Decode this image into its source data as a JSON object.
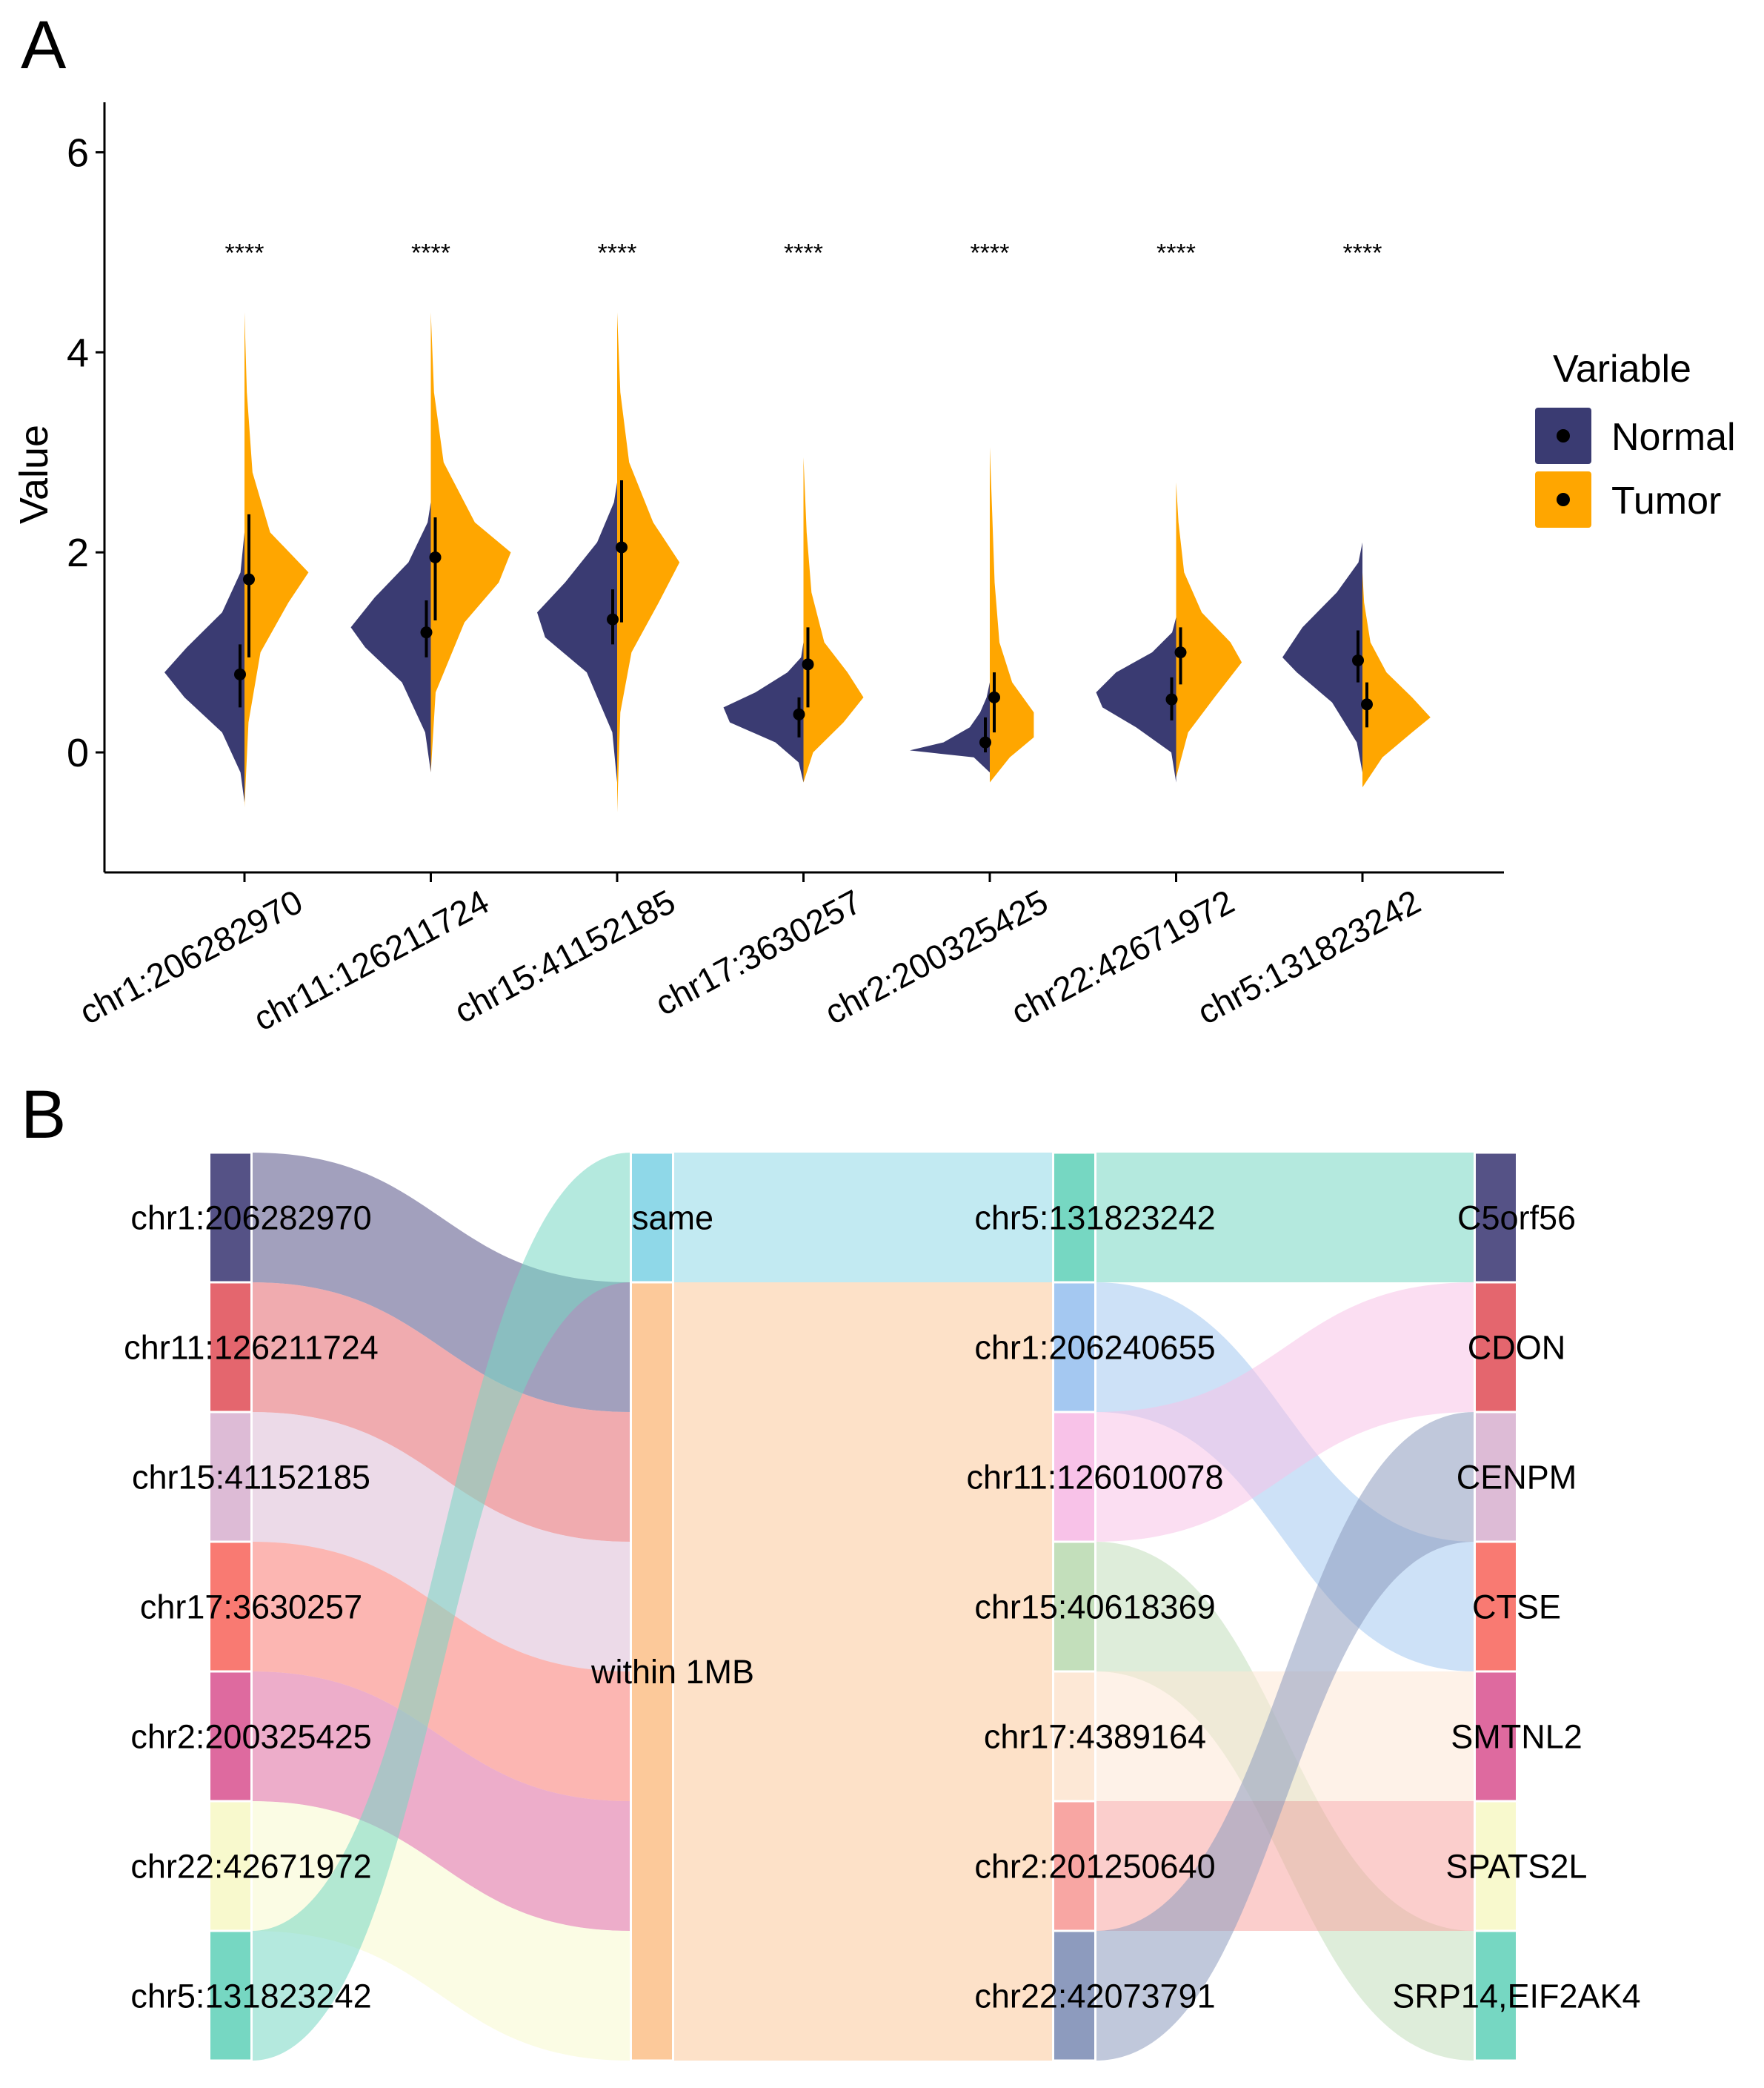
{
  "panels": {
    "a_label": "A",
    "b_label": "B"
  },
  "colors": {
    "normal": "#3a3b72",
    "tumor": "#ffa600"
  },
  "chart_data": [
    {
      "type": "split-violin",
      "title": "",
      "xlabel": "",
      "ylabel": "Value",
      "ylim": [
        -1.2,
        6.5
      ],
      "yticks": [
        0,
        2,
        4,
        6
      ],
      "legend": {
        "title": "Variable",
        "position": "right",
        "entries": [
          "Normal",
          "Tumor"
        ]
      },
      "categories": [
        "chr1:206282970",
        "chr11:126211724",
        "chr15:41152185",
        "chr17:3630257",
        "chr2:200325425",
        "chr22:42671972",
        "chr5:131823242"
      ],
      "significance": [
        "****",
        "****",
        "****",
        "****",
        "****",
        "****",
        "****"
      ],
      "series": [
        {
          "name": "Normal",
          "median": [
            0.78,
            1.2,
            1.33,
            0.38,
            0.1,
            0.53,
            0.92
          ],
          "lower": [
            0.45,
            0.95,
            1.08,
            0.15,
            0.0,
            0.32,
            0.7
          ],
          "upper": [
            1.08,
            1.52,
            1.63,
            0.55,
            0.35,
            0.75,
            1.22
          ],
          "density": [
            [
              [
                -0.5,
                0.0
              ],
              [
                -0.2,
                0.05
              ],
              [
                0.2,
                0.28
              ],
              [
                0.55,
                0.75
              ],
              [
                0.8,
                1.0
              ],
              [
                1.05,
                0.72
              ],
              [
                1.4,
                0.28
              ],
              [
                1.8,
                0.05
              ],
              [
                2.2,
                0.0
              ]
            ],
            [
              [
                -0.2,
                0.0
              ],
              [
                0.2,
                0.07
              ],
              [
                0.7,
                0.36
              ],
              [
                1.05,
                0.82
              ],
              [
                1.25,
                1.0
              ],
              [
                1.55,
                0.7
              ],
              [
                1.9,
                0.28
              ],
              [
                2.3,
                0.04
              ],
              [
                2.5,
                0.0
              ]
            ],
            [
              [
                -0.3,
                0.0
              ],
              [
                0.2,
                0.06
              ],
              [
                0.8,
                0.38
              ],
              [
                1.15,
                0.9
              ],
              [
                1.4,
                1.0
              ],
              [
                1.7,
                0.65
              ],
              [
                2.1,
                0.25
              ],
              [
                2.5,
                0.04
              ],
              [
                2.7,
                0.0
              ]
            ],
            [
              [
                -0.3,
                0.0
              ],
              [
                -0.1,
                0.06
              ],
              [
                0.1,
                0.35
              ],
              [
                0.3,
                0.92
              ],
              [
                0.45,
                1.0
              ],
              [
                0.6,
                0.6
              ],
              [
                0.8,
                0.2
              ],
              [
                0.95,
                0.03
              ],
              [
                1.1,
                0.0
              ]
            ],
            [
              [
                -0.2,
                0.0
              ],
              [
                -0.05,
                0.2
              ],
              [
                0.02,
                1.0
              ],
              [
                0.1,
                0.58
              ],
              [
                0.25,
                0.25
              ],
              [
                0.4,
                0.12
              ],
              [
                0.55,
                0.04
              ],
              [
                0.7,
                0.0
              ]
            ],
            [
              [
                -0.3,
                0.0
              ],
              [
                0.0,
                0.06
              ],
              [
                0.25,
                0.5
              ],
              [
                0.45,
                0.92
              ],
              [
                0.6,
                1.0
              ],
              [
                0.8,
                0.75
              ],
              [
                1.0,
                0.3
              ],
              [
                1.2,
                0.05
              ],
              [
                1.35,
                0.0
              ]
            ],
            [
              [
                -0.2,
                0.0
              ],
              [
                0.1,
                0.07
              ],
              [
                0.5,
                0.38
              ],
              [
                0.8,
                0.82
              ],
              [
                0.95,
                1.0
              ],
              [
                1.25,
                0.75
              ],
              [
                1.6,
                0.32
              ],
              [
                1.9,
                0.05
              ],
              [
                2.1,
                0.0
              ]
            ]
          ]
        },
        {
          "name": "Tumor",
          "median": [
            1.73,
            1.95,
            2.05,
            0.88,
            0.55,
            1.0,
            0.48
          ],
          "lower": [
            0.95,
            1.32,
            1.3,
            0.45,
            0.2,
            0.68,
            0.25
          ],
          "upper": [
            2.38,
            2.35,
            2.72,
            1.25,
            0.8,
            1.25,
            0.7
          ],
          "density": [
            [
              [
                -0.55,
                0.0
              ],
              [
                0.3,
                0.05
              ],
              [
                1.0,
                0.2
              ],
              [
                1.5,
                0.55
              ],
              [
                1.8,
                0.8
              ],
              [
                2.2,
                0.32
              ],
              [
                2.8,
                0.1
              ],
              [
                3.6,
                0.03
              ],
              [
                4.4,
                0.0
              ]
            ],
            [
              [
                -0.2,
                0.0
              ],
              [
                0.6,
                0.06
              ],
              [
                1.3,
                0.42
              ],
              [
                1.7,
                0.85
              ],
              [
                2.0,
                1.0
              ],
              [
                2.3,
                0.55
              ],
              [
                2.9,
                0.16
              ],
              [
                3.6,
                0.04
              ],
              [
                4.4,
                0.0
              ]
            ],
            [
              [
                -0.6,
                0.0
              ],
              [
                0.4,
                0.04
              ],
              [
                1.0,
                0.18
              ],
              [
                1.5,
                0.52
              ],
              [
                1.9,
                0.78
              ],
              [
                2.3,
                0.45
              ],
              [
                2.9,
                0.15
              ],
              [
                3.6,
                0.04
              ],
              [
                4.4,
                0.0
              ]
            ],
            [
              [
                -0.3,
                0.0
              ],
              [
                0.0,
                0.12
              ],
              [
                0.3,
                0.5
              ],
              [
                0.55,
                0.75
              ],
              [
                0.8,
                0.55
              ],
              [
                1.1,
                0.26
              ],
              [
                1.6,
                0.1
              ],
              [
                2.2,
                0.04
              ],
              [
                2.95,
                0.0
              ]
            ],
            [
              [
                -0.3,
                0.0
              ],
              [
                -0.05,
                0.25
              ],
              [
                0.15,
                0.55
              ],
              [
                0.4,
                0.55
              ],
              [
                0.7,
                0.28
              ],
              [
                1.1,
                0.12
              ],
              [
                1.7,
                0.06
              ],
              [
                2.4,
                0.03
              ],
              [
                3.05,
                0.0
              ]
            ],
            [
              [
                -0.25,
                0.0
              ],
              [
                0.2,
                0.15
              ],
              [
                0.55,
                0.48
              ],
              [
                0.9,
                0.82
              ],
              [
                1.1,
                0.68
              ],
              [
                1.4,
                0.32
              ],
              [
                1.8,
                0.1
              ],
              [
                2.3,
                0.03
              ],
              [
                2.7,
                0.0
              ]
            ],
            [
              [
                -0.35,
                0.0
              ],
              [
                -0.05,
                0.25
              ],
              [
                0.2,
                0.62
              ],
              [
                0.35,
                0.85
              ],
              [
                0.55,
                0.62
              ],
              [
                0.8,
                0.3
              ],
              [
                1.1,
                0.1
              ],
              [
                1.5,
                0.02
              ],
              [
                1.8,
                0.0
              ]
            ]
          ]
        }
      ]
    },
    {
      "type": "alluvial",
      "axes": [
        {
          "name": "cpg_site",
          "nodes": [
            {
              "label": "chr1:206282970",
              "color": "#555286"
            },
            {
              "label": "chr11:126211724",
              "color": "#e4666e"
            },
            {
              "label": "chr15:41152185",
              "color": "#ddbbd6"
            },
            {
              "label": "chr17:3630257",
              "color": "#f97a72"
            },
            {
              "label": "chr2:200325425",
              "color": "#de6a9f"
            },
            {
              "label": "chr22:42671972",
              "color": "#f8f9cd"
            },
            {
              "label": "chr5:131823242",
              "color": "#76d7c2"
            }
          ]
        },
        {
          "name": "relation",
          "nodes": [
            {
              "label": "same",
              "color": "#8fd8e8"
            },
            {
              "label": "within 1MB",
              "color": "#fcc99a"
            }
          ]
        },
        {
          "name": "gene_site",
          "nodes": [
            {
              "label": "chr5:131823242",
              "color": "#76d7c2"
            },
            {
              "label": "chr1:206240655",
              "color": "#a4c8f1"
            },
            {
              "label": "chr11:126010078",
              "color": "#f8c2e8"
            },
            {
              "label": "chr15:40618369",
              "color": "#c3dfbb"
            },
            {
              "label": "chr17:4389164",
              "color": "#fde8d6"
            },
            {
              "label": "chr2:201250640",
              "color": "#f8a6a3"
            },
            {
              "label": "chr22:42073791",
              "color": "#8d9bbe"
            }
          ]
        },
        {
          "name": "gene",
          "nodes": [
            {
              "label": "C5orf56",
              "color": "#555286"
            },
            {
              "label": "CDON",
              "color": "#e4666e"
            },
            {
              "label": "CENPM",
              "color": "#ddbbd6"
            },
            {
              "label": "CTSE",
              "color": "#f97a72"
            },
            {
              "label": "SMTNL2",
              "color": "#de6a9f"
            },
            {
              "label": "SPATS2L",
              "color": "#f8f9cd"
            },
            {
              "label": "SRP14,EIF2AK4",
              "color": "#76d7c2"
            }
          ]
        }
      ],
      "flows": [
        {
          "from_axis": 0,
          "from": 0,
          "to": 1,
          "value": 1
        },
        {
          "from_axis": 0,
          "from": 1,
          "to": 1,
          "value": 1
        },
        {
          "from_axis": 0,
          "from": 2,
          "to": 1,
          "value": 1
        },
        {
          "from_axis": 0,
          "from": 3,
          "to": 1,
          "value": 1
        },
        {
          "from_axis": 0,
          "from": 4,
          "to": 1,
          "value": 1
        },
        {
          "from_axis": 0,
          "from": 5,
          "to": 1,
          "value": 1
        },
        {
          "from_axis": 0,
          "from": 6,
          "to": 0,
          "value": 1
        },
        {
          "from_axis": 1,
          "from": 0,
          "to": 0,
          "value": 1
        },
        {
          "from_axis": 1,
          "from": 1,
          "to": 1,
          "value": 1
        },
        {
          "from_axis": 1,
          "from": 1,
          "to": 2,
          "value": 1
        },
        {
          "from_axis": 1,
          "from": 1,
          "to": 3,
          "value": 1
        },
        {
          "from_axis": 1,
          "from": 1,
          "to": 4,
          "value": 1
        },
        {
          "from_axis": 1,
          "from": 1,
          "to": 5,
          "value": 1
        },
        {
          "from_axis": 1,
          "from": 1,
          "to": 6,
          "value": 1
        },
        {
          "from_axis": 2,
          "from": 0,
          "to": 0,
          "value": 1
        },
        {
          "from_axis": 2,
          "from": 1,
          "to": 3,
          "value": 1
        },
        {
          "from_axis": 2,
          "from": 2,
          "to": 1,
          "value": 1
        },
        {
          "from_axis": 2,
          "from": 3,
          "to": 6,
          "value": 1
        },
        {
          "from_axis": 2,
          "from": 4,
          "to": 4,
          "value": 1
        },
        {
          "from_axis": 2,
          "from": 5,
          "to": 5,
          "value": 1
        },
        {
          "from_axis": 2,
          "from": 6,
          "to": 2,
          "value": 1
        }
      ]
    }
  ]
}
